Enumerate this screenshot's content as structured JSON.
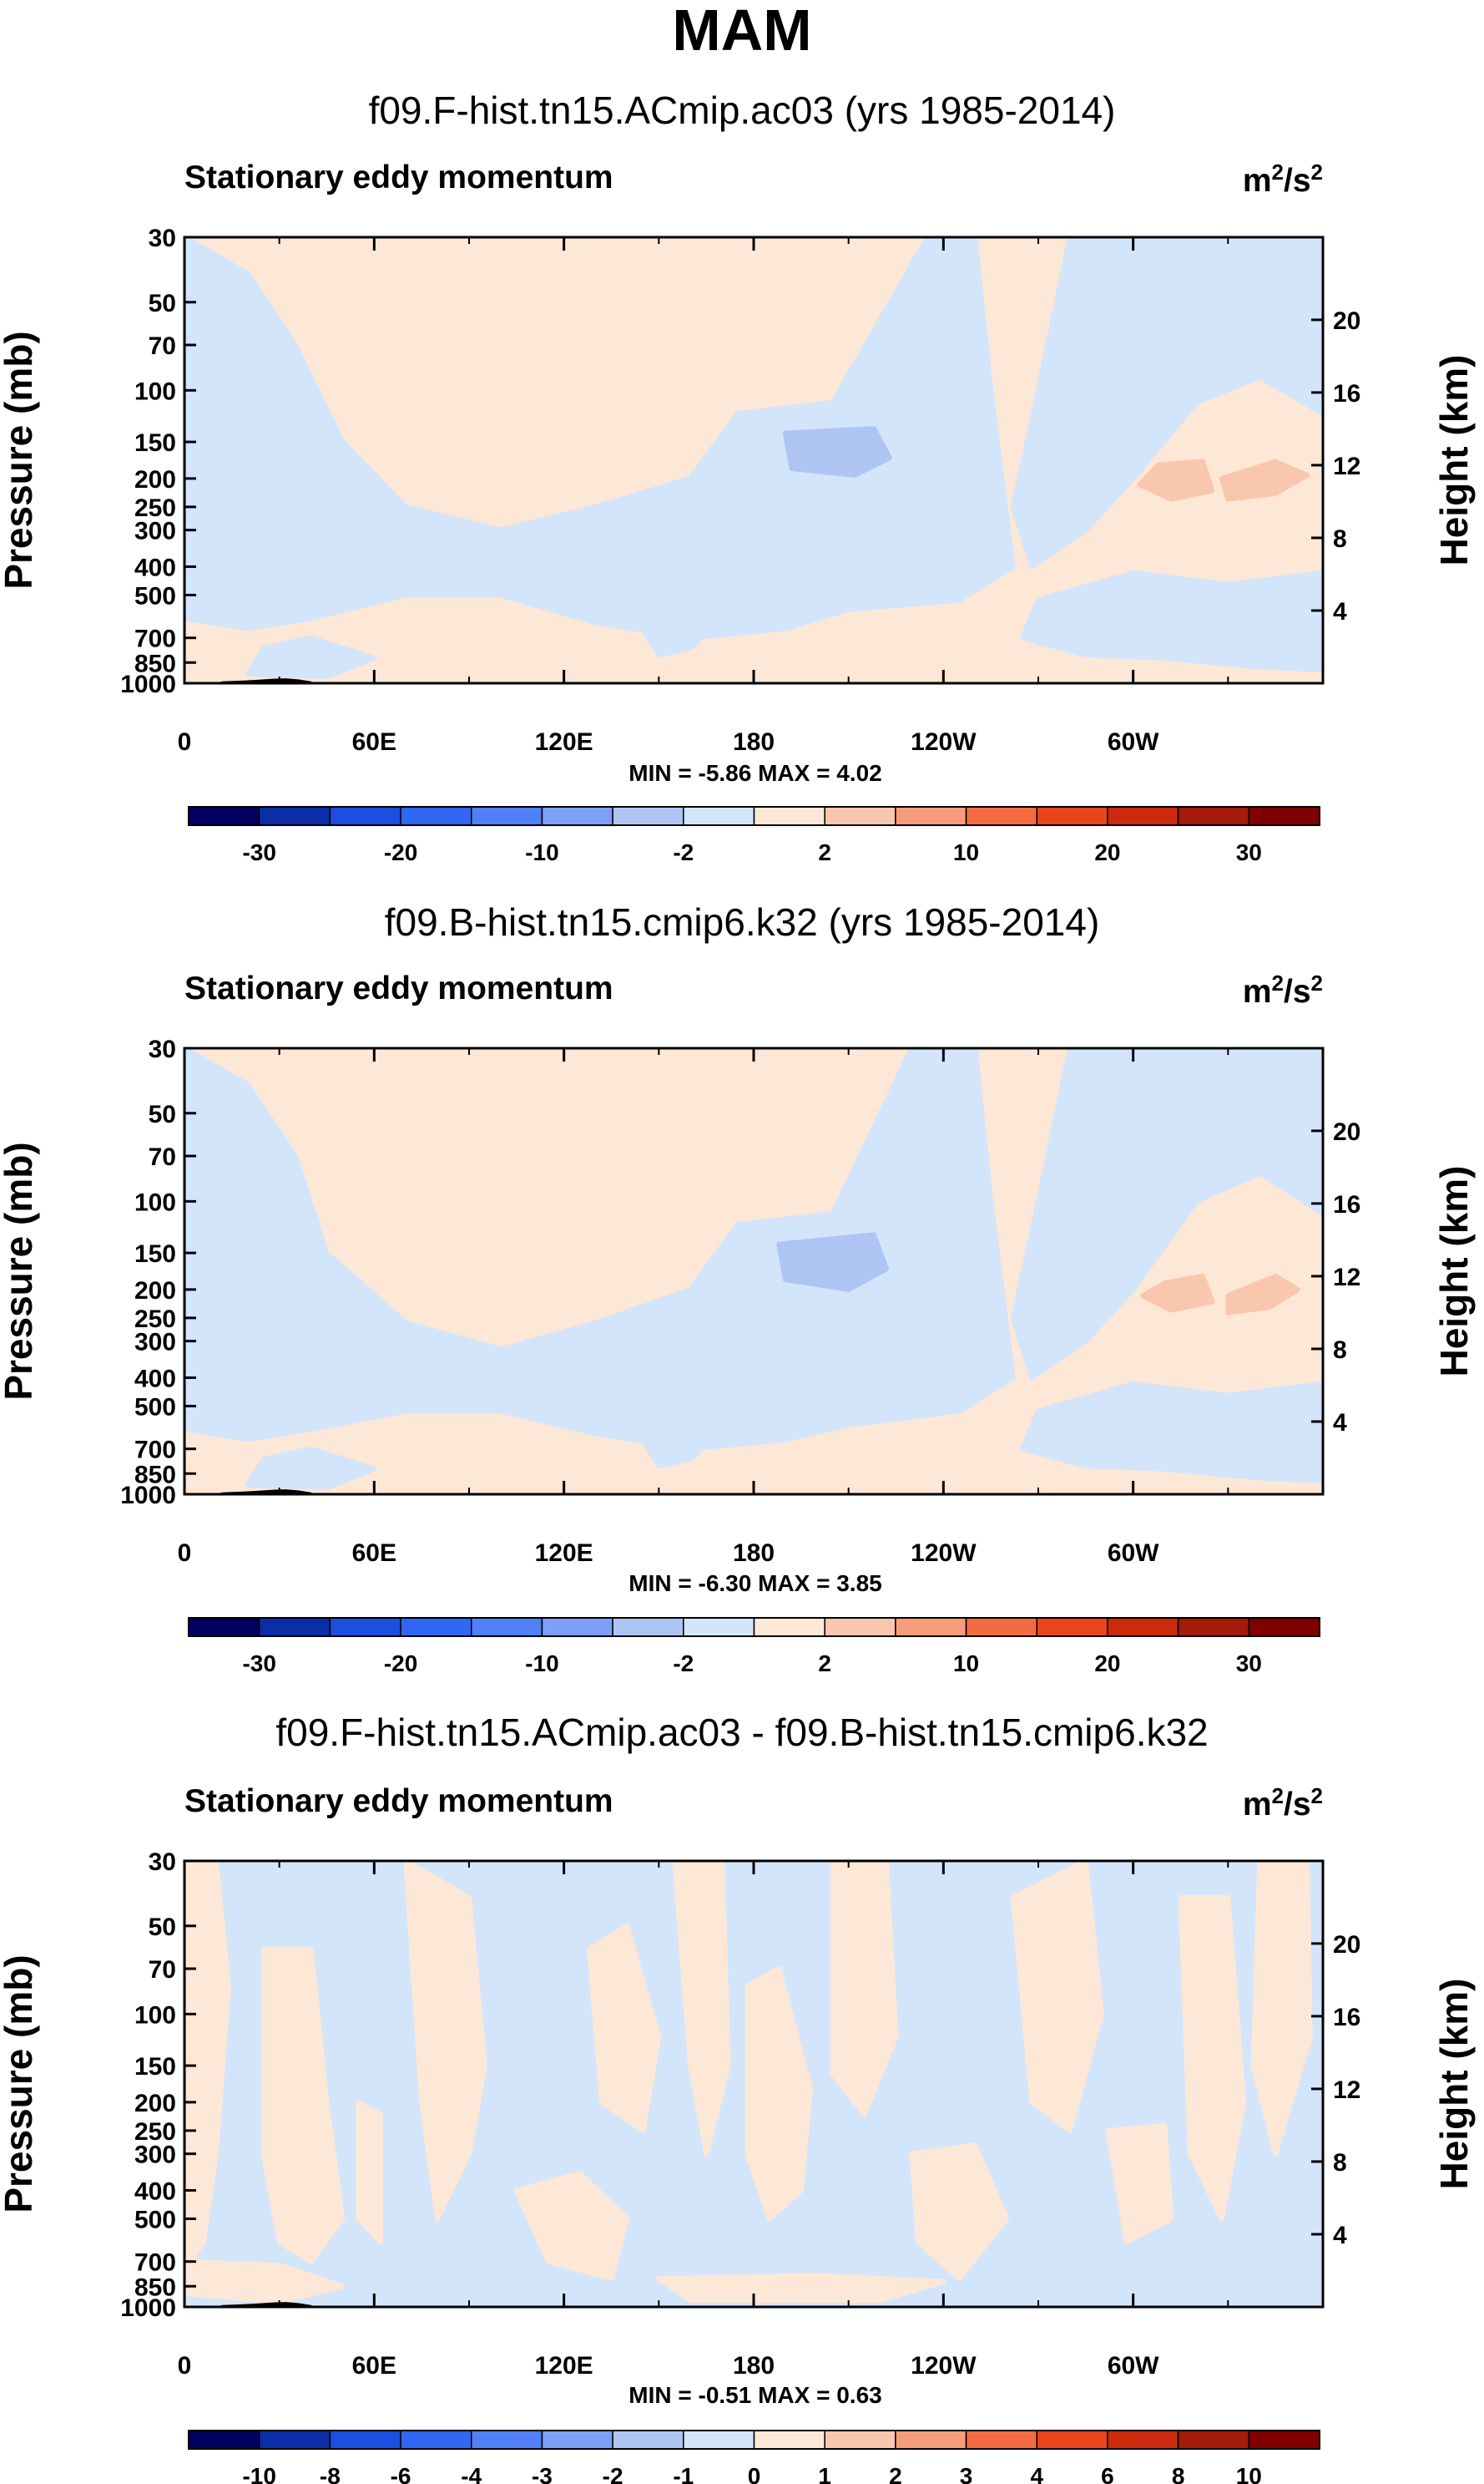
{
  "title": "MAM",
  "colors": {
    "background": "#ffffff",
    "frame": "#000000",
    "topography": "#000000",
    "colorbar": [
      "#00005f",
      "#0a2ea6",
      "#1c4fe0",
      "#2f66f2",
      "#4f80f5",
      "#7d9ff6",
      "#aec5f4",
      "#d3e5fb",
      "#fde7d6",
      "#f9c7ad",
      "#f59c7a",
      "#f26b43",
      "#e9441c",
      "#cc2a0d",
      "#a51a08",
      "#800000"
    ]
  },
  "chart_data": [
    {
      "type": "heatmap",
      "panel_title": "f09.F-hist.tn15.ACmip.ac03 (yrs 1985-2014)",
      "field": "Stationary eddy momentum",
      "units_base": "m",
      "units_exp1": "2",
      "units_mid": "/s",
      "units_exp2": "2",
      "ylabel": "Pressure (mb)",
      "y2label": "Height (km)",
      "pressure_ticks": [
        "30",
        "50",
        "70",
        "100",
        "150",
        "200",
        "250",
        "300",
        "400",
        "500",
        "700",
        "850",
        "1000"
      ],
      "height_ticks": [
        "20",
        "16",
        "12",
        "8",
        "4"
      ],
      "x_ticks": [
        "0",
        "60E",
        "120E",
        "180",
        "120W",
        "60W"
      ],
      "stats": "MIN = -5.86  MAX = 4.02",
      "colorbar_labels": [
        "-30",
        "-20",
        "-10",
        "-2",
        "2",
        "10",
        "20",
        "30"
      ],
      "colorbar_levels": [
        -35,
        -30,
        -25,
        -20,
        -15,
        -10,
        -5,
        -2,
        0,
        2,
        5,
        10,
        15,
        20,
        25,
        30,
        35
      ]
    },
    {
      "type": "heatmap",
      "panel_title": "f09.B-hist.tn15.cmip6.k32 (yrs 1985-2014)",
      "field": "Stationary eddy momentum",
      "units_base": "m",
      "units_exp1": "2",
      "units_mid": "/s",
      "units_exp2": "2",
      "ylabel": "Pressure (mb)",
      "y2label": "Height (km)",
      "pressure_ticks": [
        "30",
        "50",
        "70",
        "100",
        "150",
        "200",
        "250",
        "300",
        "400",
        "500",
        "700",
        "850",
        "1000"
      ],
      "height_ticks": [
        "20",
        "16",
        "12",
        "8",
        "4"
      ],
      "x_ticks": [
        "0",
        "60E",
        "120E",
        "180",
        "120W",
        "60W"
      ],
      "stats": "MIN = -6.30  MAX = 3.85",
      "colorbar_labels": [
        "-30",
        "-20",
        "-10",
        "-2",
        "2",
        "10",
        "20",
        "30"
      ],
      "colorbar_levels": [
        -35,
        -30,
        -25,
        -20,
        -15,
        -10,
        -5,
        -2,
        0,
        2,
        5,
        10,
        15,
        20,
        25,
        30,
        35
      ]
    },
    {
      "type": "heatmap",
      "panel_title": "f09.F-hist.tn15.ACmip.ac03 - f09.B-hist.tn15.cmip6.k32",
      "field": "Stationary eddy momentum",
      "units_base": "m",
      "units_exp1": "2",
      "units_mid": "/s",
      "units_exp2": "2",
      "ylabel": "Pressure (mb)",
      "y2label": "Height (km)",
      "pressure_ticks": [
        "30",
        "50",
        "70",
        "100",
        "150",
        "200",
        "250",
        "300",
        "400",
        "500",
        "700",
        "850",
        "1000"
      ],
      "height_ticks": [
        "20",
        "16",
        "12",
        "8",
        "4"
      ],
      "x_ticks": [
        "0",
        "60E",
        "120E",
        "180",
        "120W",
        "60W"
      ],
      "stats": "MIN = -0.51  MAX = 0.63",
      "colorbar_labels": [
        "-10",
        "-8",
        "-6",
        "-4",
        "-3",
        "-2",
        "-1",
        "0",
        "1",
        "2",
        "3",
        "4",
        "6",
        "8",
        "10"
      ],
      "colorbar_levels": [
        -12,
        -10,
        -8,
        -6,
        -4,
        -3,
        -2,
        -1,
        0,
        1,
        2,
        3,
        4,
        6,
        8,
        10,
        12
      ]
    }
  ]
}
